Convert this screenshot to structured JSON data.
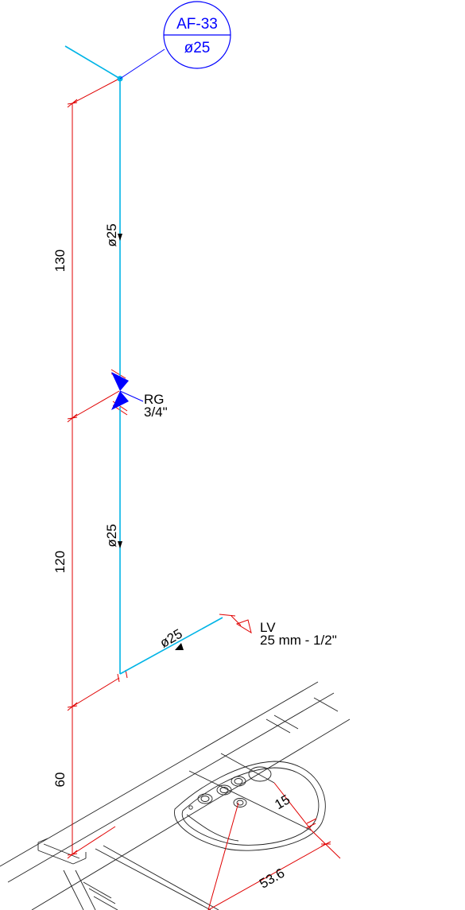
{
  "tag": {
    "code": "AF-33",
    "diameter": "ø25"
  },
  "pipe_labels": {
    "upper": "ø25",
    "lower": "ø25",
    "horizontal": "ø25"
  },
  "valve": {
    "code": "RG",
    "size": "3/4\""
  },
  "outlet": {
    "code": "LV",
    "size": "25 mm - 1/2\""
  },
  "dimensions": {
    "seg_top": "130",
    "seg_mid": "120",
    "seg_bottom": "60",
    "offset": "15",
    "width": "53.6"
  },
  "colors": {
    "pipe": "#00b4e6",
    "dimension": "#e00000",
    "tag": "#0000ff",
    "valve": "#0000ff",
    "fixture": "#000000"
  }
}
